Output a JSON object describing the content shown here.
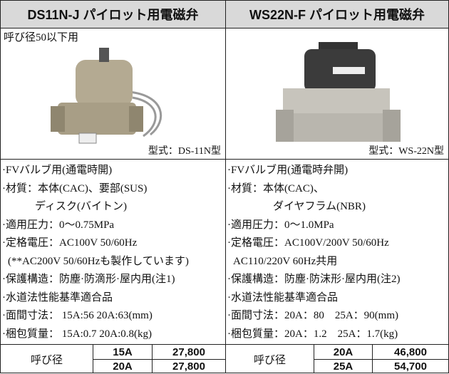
{
  "products": [
    {
      "title": "DS11N-J パイロット用電磁弁",
      "size_note": "呼び径50以下用",
      "model": "型式：DS-11N型",
      "specs": [
        "·FVバルブ用(通電時開)",
        "·材質：本体(CAC)、要部(SUS)",
        "ディスク(バイトン)",
        "·適用圧力：0〜0.75MPa",
        "·定格電圧：AC100V 50/60Hz",
        "(**AC200V 50/60Hzも製作しています)",
        "·保護構造：防塵·防滴形·屋内用(注1)",
        "·水道法性能基準適合品",
        "·面間寸法： 15A:56 20A:63(mm)",
        "·梱包質量： 15A:0.7 20A:0.8(kg)"
      ],
      "price_table": {
        "header": "呼び径",
        "rows": [
          [
            "15A",
            "27,800"
          ],
          [
            "20A",
            "27,800"
          ]
        ]
      }
    },
    {
      "title": "WS22N-F パイロット用電磁弁",
      "model": "型式：WS-22N型",
      "specs": [
        "·FVバルブ用(通電時弁開)",
        "·材質：本体(CAC)、",
        "ダイヤフラム(NBR)",
        "·適用圧力：0〜1.0MPa",
        "·定格電圧：AC100V/200V 50/60Hz",
        "AC110/220V 60Hz共用",
        "·保護構造：防塵·防沫形·屋内用(注2)",
        "·水道法性能基準適合品",
        "·面間寸法：20A：80　25A：90(mm)",
        "·梱包質量：20A：1.2　25A：1.7(kg)"
      ],
      "price_table": {
        "header": "呼び径",
        "rows": [
          [
            "20A",
            "46,800"
          ],
          [
            "25A",
            "54,700"
          ]
        ]
      }
    }
  ]
}
